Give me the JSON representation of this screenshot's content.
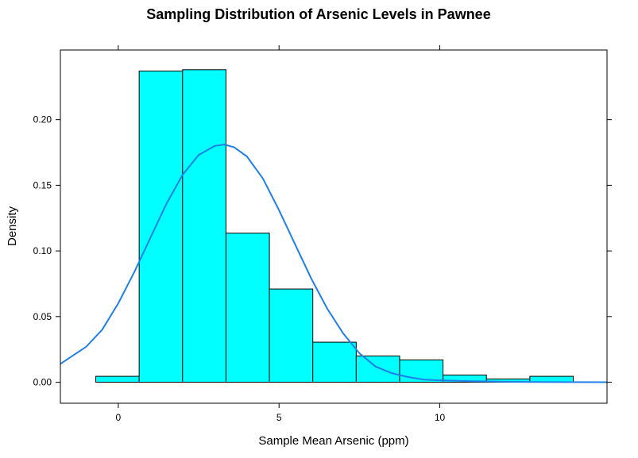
{
  "chart_data": {
    "type": "bar",
    "subtype": "histogram-with-density-curve",
    "title": "Sampling Distribution of Arsenic Levels in Pawnee",
    "xlabel": "Sample Mean Arsenic (ppm)",
    "ylabel": "Density",
    "xlim": [
      -1.8,
      15.2
    ],
    "ylim": [
      -0.016,
      0.253
    ],
    "x_ticks": [
      0,
      5,
      10
    ],
    "x_tick_labels": [
      "0",
      "5",
      "10"
    ],
    "y_ticks": [
      0.0,
      0.05,
      0.1,
      0.15,
      0.2
    ],
    "y_tick_labels": [
      "0.00",
      "0.05",
      "0.10",
      "0.15",
      "0.20"
    ],
    "grid": false,
    "bins": [
      {
        "x0": -0.7,
        "x1": 0.65,
        "density": 0.0045
      },
      {
        "x0": 0.65,
        "x1": 2.0,
        "density": 0.237
      },
      {
        "x0": 2.0,
        "x1": 3.35,
        "density": 0.238
      },
      {
        "x0": 3.35,
        "x1": 4.7,
        "density": 0.1135
      },
      {
        "x0": 4.7,
        "x1": 6.05,
        "density": 0.071
      },
      {
        "x0": 6.05,
        "x1": 7.4,
        "density": 0.0305
      },
      {
        "x0": 7.4,
        "x1": 8.75,
        "density": 0.02
      },
      {
        "x0": 8.75,
        "x1": 10.1,
        "density": 0.017
      },
      {
        "x0": 10.1,
        "x1": 11.45,
        "density": 0.0055
      },
      {
        "x0": 11.45,
        "x1": 12.8,
        "density": 0.0025
      },
      {
        "x0": 12.8,
        "x1": 14.15,
        "density": 0.0045
      }
    ],
    "density_curve": {
      "x": [
        -1.8,
        -1.0,
        -0.5,
        0.0,
        0.5,
        1.0,
        1.5,
        2.0,
        2.5,
        3.0,
        3.3,
        3.6,
        4.0,
        4.5,
        5.0,
        5.5,
        6.0,
        6.5,
        7.0,
        7.5,
        8.0,
        8.5,
        9.0,
        9.5,
        10.0,
        11.0,
        12.0,
        13.0,
        14.0,
        15.2
      ],
      "y": [
        0.014,
        0.027,
        0.04,
        0.06,
        0.084,
        0.11,
        0.136,
        0.158,
        0.173,
        0.18,
        0.181,
        0.179,
        0.172,
        0.155,
        0.131,
        0.105,
        0.079,
        0.056,
        0.037,
        0.022,
        0.012,
        0.007,
        0.004,
        0.002,
        0.0015,
        0.0008,
        0.0004,
        0.0002,
        0.0001,
        0.0
      ]
    },
    "colors": {
      "bar_fill": "#00ffff",
      "bar_stroke": "#000000",
      "curve": "#1f7fe8",
      "frame": "#000000"
    }
  }
}
